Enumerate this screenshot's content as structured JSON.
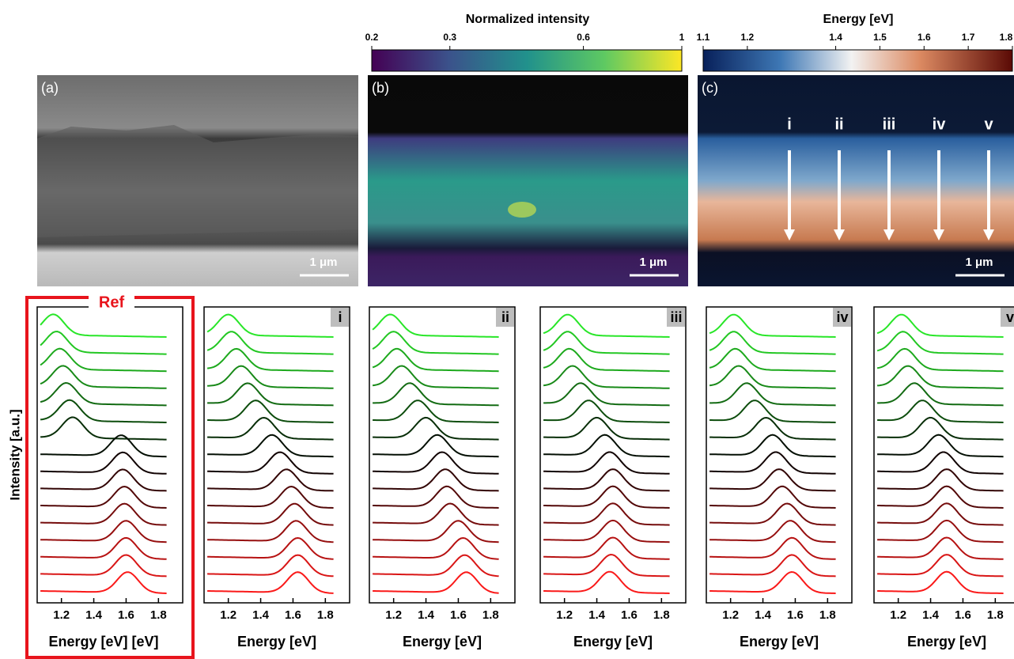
{
  "colorbars": [
    {
      "title": "Normalized intensity",
      "ticks": [
        0.2,
        0.3,
        0.6,
        1
      ],
      "log": true
    },
    {
      "title": "Energy [eV]",
      "ticks": [
        1.1,
        1.2,
        1.4,
        1.5,
        1.6,
        1.7,
        1.8
      ],
      "log": false
    }
  ],
  "images": [
    {
      "label": "(a)",
      "scale_bar": "1 μm"
    },
    {
      "label": "(b)",
      "scale_bar": "1 μm"
    },
    {
      "label": "(c)",
      "scale_bar": "1 μm"
    }
  ],
  "map_arrows": [
    "i",
    "ii",
    "iii",
    "iv",
    "v"
  ],
  "chart_data": [
    {
      "type": "waterfall",
      "title": "Ref",
      "xlabel": "Energy [eV] [eV]",
      "ylabel": "Intensity [a.u.]",
      "xlim": [
        1.05,
        1.95
      ],
      "xticks": [
        1.2,
        1.4,
        1.6,
        1.8
      ],
      "peak_energies": [
        1.15,
        1.17,
        1.19,
        1.21,
        1.23,
        1.25,
        1.27,
        1.57,
        1.58,
        1.58,
        1.59,
        1.59,
        1.6,
        1.6,
        1.6,
        1.61
      ]
    },
    {
      "type": "waterfall",
      "title": "i",
      "xlabel": "Energy [eV]",
      "xlim": [
        1.05,
        1.95
      ],
      "xticks": [
        1.2,
        1.4,
        1.6,
        1.8
      ],
      "peak_energies": [
        1.2,
        1.22,
        1.25,
        1.28,
        1.32,
        1.37,
        1.42,
        1.47,
        1.52,
        1.56,
        1.59,
        1.61,
        1.62,
        1.63,
        1.63,
        1.63
      ]
    },
    {
      "type": "waterfall",
      "title": "ii",
      "xlabel": "Energy [eV]",
      "xlim": [
        1.05,
        1.95
      ],
      "xticks": [
        1.2,
        1.4,
        1.6,
        1.8
      ],
      "peak_energies": [
        1.18,
        1.2,
        1.22,
        1.25,
        1.3,
        1.35,
        1.4,
        1.47,
        1.5,
        1.52,
        1.53,
        1.55,
        1.6,
        1.63,
        1.64,
        1.65
      ]
    },
    {
      "type": "waterfall",
      "title": "iii",
      "xlabel": "Energy [eV]",
      "xlim": [
        1.05,
        1.95
      ],
      "xticks": [
        1.2,
        1.4,
        1.6,
        1.8
      ],
      "peak_energies": [
        1.22,
        1.22,
        1.23,
        1.25,
        1.3,
        1.35,
        1.4,
        1.45,
        1.48,
        1.5,
        1.5,
        1.5,
        1.5,
        1.5,
        1.49,
        1.48
      ]
    },
    {
      "type": "waterfall",
      "title": "iv",
      "xlabel": "Energy [eV]",
      "xlim": [
        1.05,
        1.95
      ],
      "xticks": [
        1.2,
        1.4,
        1.6,
        1.8
      ],
      "peak_energies": [
        1.22,
        1.22,
        1.23,
        1.25,
        1.3,
        1.35,
        1.42,
        1.46,
        1.48,
        1.5,
        1.52,
        1.55,
        1.57,
        1.58,
        1.58,
        1.58
      ]
    },
    {
      "type": "waterfall",
      "title": "v",
      "xlabel": "Energy [eV]",
      "xlim": [
        1.05,
        1.95
      ],
      "xticks": [
        1.2,
        1.4,
        1.6,
        1.8
      ],
      "peak_energies": [
        1.22,
        1.23,
        1.24,
        1.26,
        1.3,
        1.35,
        1.4,
        1.45,
        1.48,
        1.5,
        1.5,
        1.5,
        1.5,
        1.5,
        1.5,
        1.5
      ]
    }
  ]
}
